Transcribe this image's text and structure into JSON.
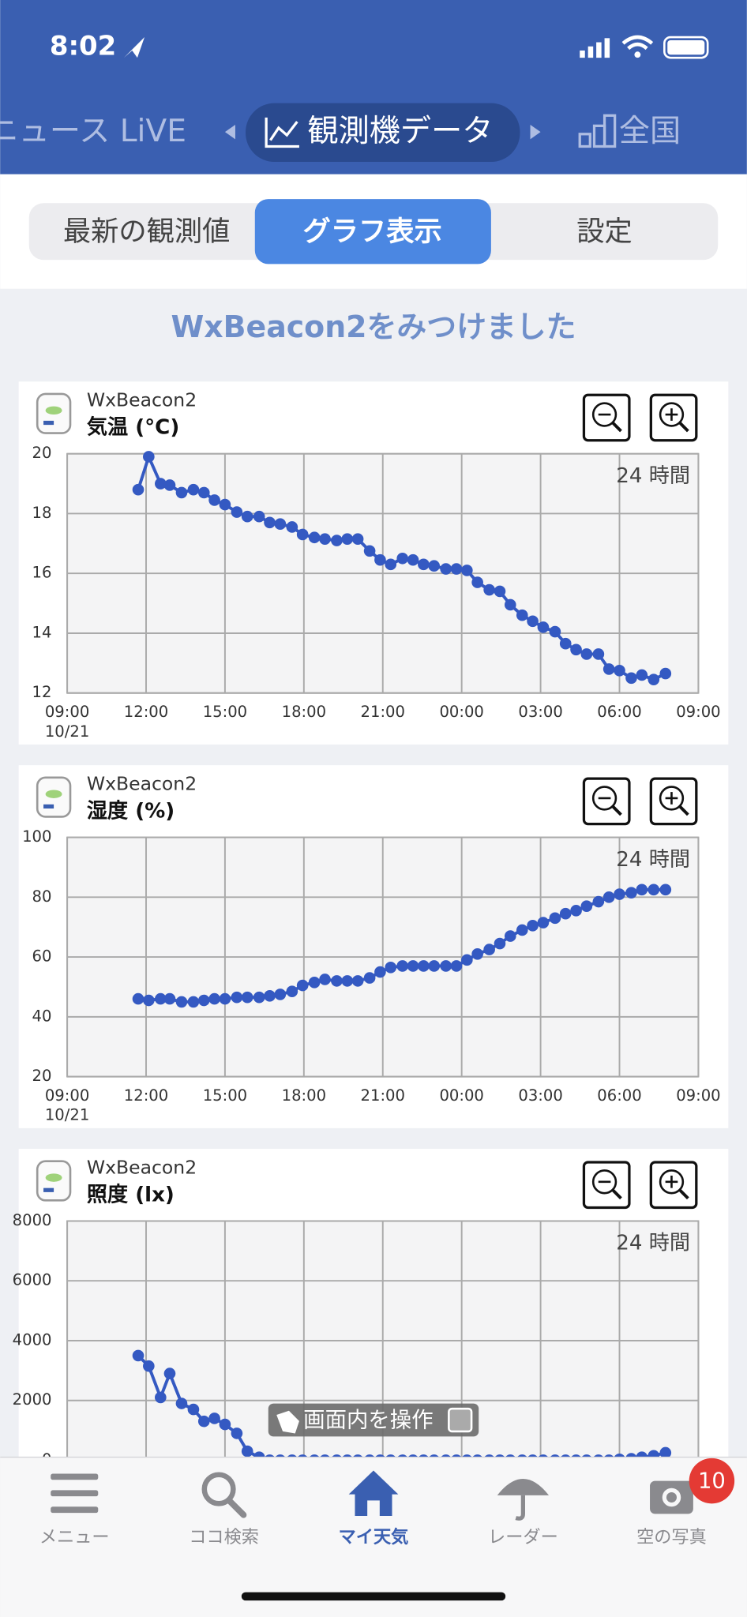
{
  "status_bar": {
    "time": "8:02"
  },
  "top_tabs": {
    "left": "ニュース LiVE",
    "active": "観測機データ",
    "right": "全国"
  },
  "segments": [
    "最新の観測値",
    "グラフ表示",
    "設定"
  ],
  "heading": "WxBeacon2をみつけました",
  "chart_data": [
    {
      "type": "line",
      "device": "WxBeacon2",
      "title": "気温 (°C)",
      "range_label": "24 時間",
      "x": [
        2.7,
        3.1,
        3.55,
        3.9,
        4.35,
        4.8,
        5.2,
        5.6,
        6.0,
        6.45,
        6.85,
        7.3,
        7.7,
        8.1,
        8.55,
        8.95,
        9.4,
        9.8,
        10.25,
        10.65,
        11.05,
        11.5,
        11.9,
        12.3,
        12.75,
        13.15,
        13.55,
        13.95,
        14.4,
        14.8,
        15.2,
        15.6,
        16.05,
        16.45,
        16.85,
        17.3,
        17.7,
        18.1,
        18.55,
        18.95,
        19.35,
        19.75,
        20.2,
        20.6,
        21.0,
        21.45,
        21.85,
        22.3,
        22.75
      ],
      "values": [
        18.8,
        19.9,
        19.0,
        18.95,
        18.7,
        18.8,
        18.7,
        18.45,
        18.3,
        18.05,
        17.9,
        17.9,
        17.7,
        17.65,
        17.55,
        17.3,
        17.2,
        17.15,
        17.1,
        17.15,
        17.15,
        16.75,
        16.45,
        16.3,
        16.5,
        16.45,
        16.3,
        16.25,
        16.15,
        16.15,
        16.1,
        15.7,
        15.45,
        15.4,
        14.95,
        14.6,
        14.4,
        14.2,
        14.05,
        13.65,
        13.45,
        13.3,
        13.3,
        12.8,
        12.75,
        12.5,
        12.6,
        12.45,
        12.65
      ],
      "color": "#3459c2",
      "xlim": [
        0,
        24
      ],
      "xticks": [
        {
          "value": 0,
          "label": "09:00"
        },
        {
          "value": 3,
          "label": "12:00"
        },
        {
          "value": 6,
          "label": "15:00"
        },
        {
          "value": 9,
          "label": "18:00"
        },
        {
          "value": 12,
          "label": "21:00"
        },
        {
          "value": 15,
          "label": "00:00"
        },
        {
          "value": 18,
          "label": "03:00"
        },
        {
          "value": 21,
          "label": "06:00"
        },
        {
          "value": 24,
          "label": "09:00"
        }
      ],
      "x_date": "10/21",
      "ylim": [
        12,
        20
      ],
      "yticks": [
        12,
        14,
        16,
        18,
        20
      ],
      "grid": true
    },
    {
      "type": "line",
      "device": "WxBeacon2",
      "title": "湿度 (%)",
      "range_label": "24 時間",
      "x": [
        2.7,
        3.1,
        3.55,
        3.9,
        4.35,
        4.8,
        5.2,
        5.6,
        6.0,
        6.45,
        6.85,
        7.3,
        7.7,
        8.1,
        8.55,
        8.95,
        9.4,
        9.8,
        10.25,
        10.65,
        11.05,
        11.5,
        11.9,
        12.3,
        12.75,
        13.15,
        13.55,
        13.95,
        14.4,
        14.8,
        15.2,
        15.6,
        16.05,
        16.45,
        16.85,
        17.3,
        17.7,
        18.1,
        18.55,
        18.95,
        19.35,
        19.75,
        20.2,
        20.6,
        21.0,
        21.45,
        21.85,
        22.3,
        22.75
      ],
      "values": [
        46,
        45.5,
        46,
        46,
        45,
        45,
        45.5,
        46,
        46,
        46.5,
        46.5,
        46.5,
        47,
        47.5,
        48.5,
        50.5,
        51.5,
        52.5,
        52,
        52,
        52,
        53,
        55,
        56.5,
        57,
        57,
        57,
        57,
        57,
        57,
        59,
        61,
        62.5,
        64.5,
        67,
        69,
        70.5,
        71.5,
        73,
        74.5,
        75.5,
        77,
        78.5,
        80,
        81,
        81.5,
        82.5,
        82.5,
        82.5
      ],
      "color": "#3459c2",
      "xlim": [
        0,
        24
      ],
      "xticks": [
        {
          "value": 0,
          "label": "09:00"
        },
        {
          "value": 3,
          "label": "12:00"
        },
        {
          "value": 6,
          "label": "15:00"
        },
        {
          "value": 9,
          "label": "18:00"
        },
        {
          "value": 12,
          "label": "21:00"
        },
        {
          "value": 15,
          "label": "00:00"
        },
        {
          "value": 18,
          "label": "03:00"
        },
        {
          "value": 21,
          "label": "06:00"
        },
        {
          "value": 24,
          "label": "09:00"
        }
      ],
      "x_date": "10/21",
      "ylim": [
        20,
        100
      ],
      "yticks": [
        20,
        40,
        60,
        80,
        100
      ],
      "grid": true
    },
    {
      "type": "line",
      "device": "WxBeacon2",
      "title": "照度 (lx)",
      "range_label": "24 時間",
      "x": [
        2.7,
        3.1,
        3.55,
        3.9,
        4.35,
        4.8,
        5.2,
        5.6,
        6.0,
        6.45,
        6.85,
        7.3,
        7.7,
        8.1,
        8.55,
        8.95,
        9.4,
        9.8,
        10.25,
        10.65,
        11.05,
        11.5,
        11.9,
        12.3,
        12.75,
        13.15,
        13.55,
        13.95,
        14.4,
        14.8,
        15.2,
        15.6,
        16.05,
        16.45,
        16.85,
        17.3,
        17.7,
        18.1,
        18.55,
        18.95,
        19.35,
        19.75,
        20.2,
        20.6,
        21.0,
        21.45,
        21.85,
        22.3,
        22.75
      ],
      "values": [
        3500,
        3150,
        2100,
        2900,
        1900,
        1700,
        1300,
        1400,
        1200,
        900,
        300,
        100,
        0,
        0,
        0,
        0,
        0,
        0,
        0,
        0,
        0,
        0,
        0,
        0,
        0,
        0,
        0,
        0,
        0,
        0,
        0,
        0,
        0,
        0,
        0,
        0,
        0,
        0,
        0,
        0,
        0,
        0,
        0,
        0,
        30,
        50,
        100,
        150,
        250
      ],
      "color": "#3459c2",
      "xlim": [
        0,
        24
      ],
      "xticks": [
        0,
        3,
        6,
        9,
        12,
        15,
        18,
        21,
        24
      ],
      "ylim": [
        0,
        8000
      ],
      "yticks": [
        0,
        2000,
        4000,
        6000,
        8000
      ],
      "grid": true
    }
  ],
  "overlay_button": "画面内を操作",
  "tab_bar": {
    "items": [
      "メニュー",
      "ココ検索",
      "マイ天気",
      "レーダー",
      "空の写真"
    ],
    "badge": "10"
  }
}
